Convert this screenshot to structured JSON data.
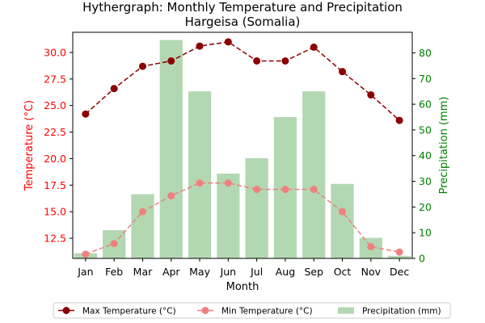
{
  "chart_data": {
    "type": "bar+line",
    "title": "Hythergraph: Monthly Temperature and Precipitation",
    "subtitle": "Hargeisa (Somalia)",
    "xlabel": "Month",
    "ylabel_left": "Temperature (°C)",
    "ylabel_right": "Precipitation (mm)",
    "categories": [
      "Jan",
      "Feb",
      "Mar",
      "Apr",
      "May",
      "Jun",
      "Jul",
      "Aug",
      "Sep",
      "Oct",
      "Nov",
      "Dec"
    ],
    "ylim_left": [
      10.6,
      31.9
    ],
    "yticks_left": [
      12.5,
      15.0,
      17.5,
      20.0,
      22.5,
      25.0,
      27.5,
      30.0
    ],
    "ylim_right": [
      0,
      88
    ],
    "yticks_right": [
      0,
      10,
      20,
      30,
      40,
      50,
      60,
      70,
      80
    ],
    "series": [
      {
        "name": "Max Temperature (°C)",
        "type": "line",
        "axis": "left",
        "values": [
          24.2,
          26.6,
          28.7,
          29.2,
          30.6,
          31.0,
          29.2,
          29.2,
          30.5,
          28.2,
          26.0,
          23.6
        ]
      },
      {
        "name": "Min Temperature (°C)",
        "type": "line",
        "axis": "left",
        "values": [
          11.0,
          12.0,
          15.0,
          16.5,
          17.7,
          17.7,
          17.1,
          17.1,
          17.1,
          15.0,
          11.7,
          11.2
        ]
      },
      {
        "name": "Precipitation (mm)",
        "type": "bar",
        "axis": "right",
        "values": [
          2,
          11,
          25,
          85,
          65,
          33,
          39,
          55,
          65,
          29,
          8,
          1
        ]
      }
    ],
    "colors": {
      "max": "#8b0000",
      "min": "#f08080",
      "precip": "#b2d8b2",
      "left_axis": "#ff0000",
      "right_axis": "#008000"
    },
    "legend_position": "bottom-center",
    "grid": false
  }
}
